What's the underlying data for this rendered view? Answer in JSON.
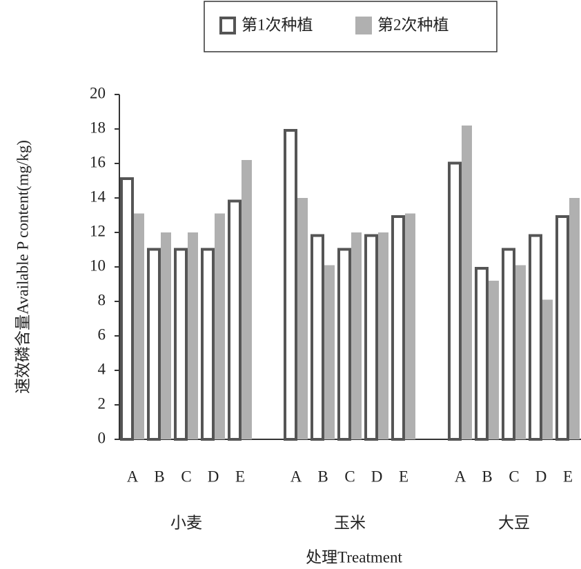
{
  "chart_data": {
    "type": "grouped_bar",
    "groups": [
      "小麦",
      "玉米",
      "大豆"
    ],
    "categories": [
      [
        "A",
        "B",
        "C",
        "D",
        "E"
      ],
      [
        "A",
        "B",
        "C",
        "D",
        "E"
      ],
      [
        "A",
        "B",
        "C",
        "D",
        "E"
      ]
    ],
    "series": [
      {
        "name": "第1次种植",
        "color": "#555555",
        "style": "outline",
        "values": [
          [
            15.2,
            11.1,
            11.1,
            11.1,
            13.9
          ],
          [
            18.0,
            11.9,
            11.1,
            11.9,
            13.0
          ],
          [
            16.1,
            10.0,
            11.1,
            11.9,
            13.0
          ]
        ]
      },
      {
        "name": "第2次种植",
        "color": "#b0b0b0",
        "style": "filled",
        "values": [
          [
            13.1,
            12.0,
            12.0,
            13.1,
            16.2
          ],
          [
            14.0,
            10.1,
            12.0,
            12.0,
            13.1
          ],
          [
            18.2,
            9.2,
            10.1,
            8.1,
            14.0
          ]
        ]
      }
    ],
    "ylabel": "速效磷含量Available P content(mg/kg)",
    "xlabel": "处理Treatment",
    "ylim": [
      0,
      20
    ],
    "yticks": [
      0,
      2,
      4,
      6,
      8,
      10,
      12,
      14,
      16,
      18,
      20
    ],
    "legend": "top"
  }
}
